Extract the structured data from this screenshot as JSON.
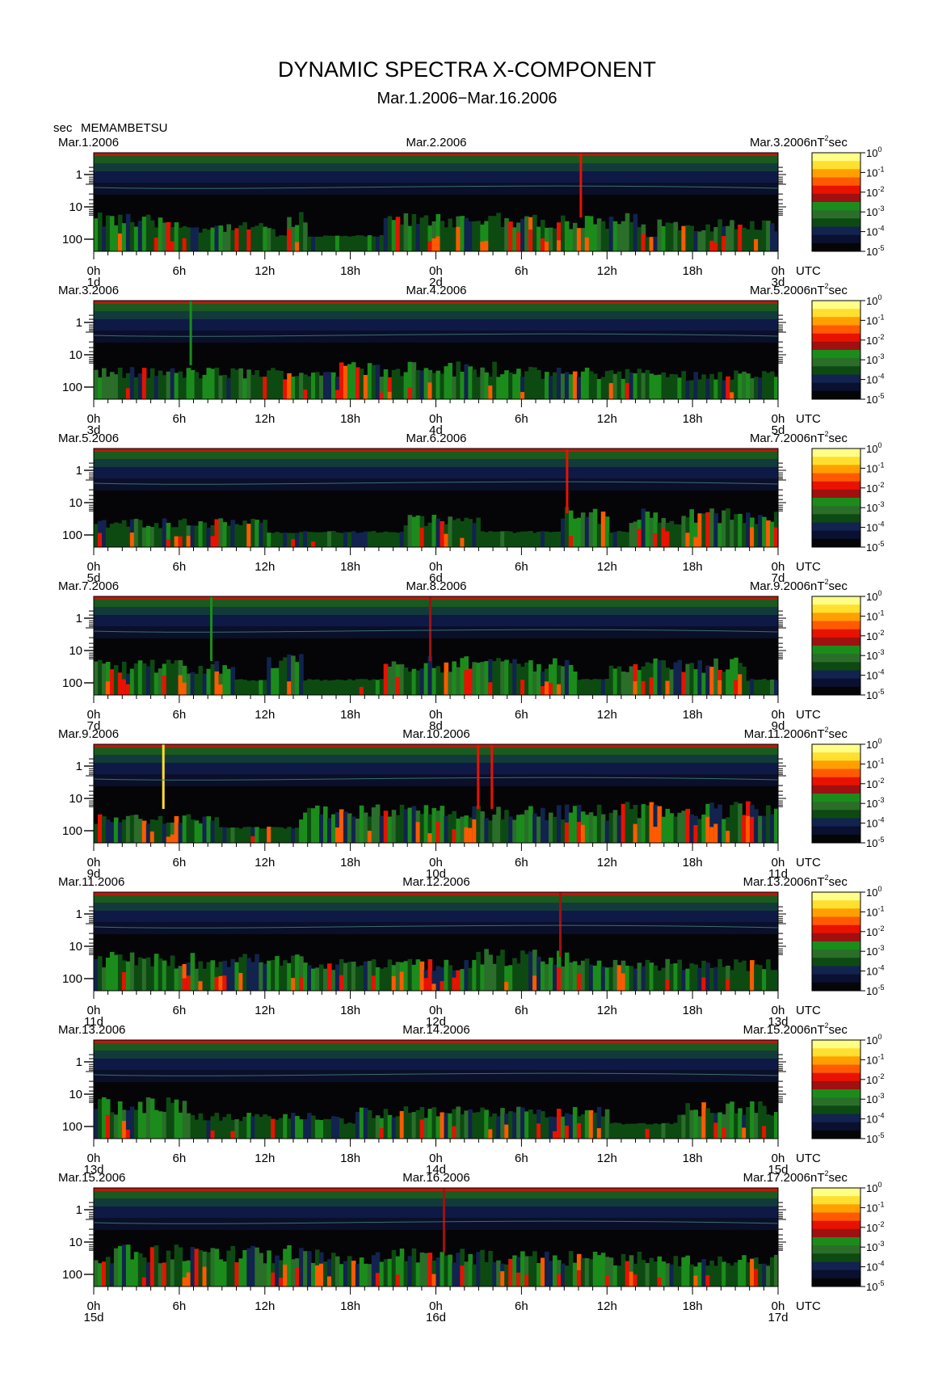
{
  "title": "DYNAMIC SPECTRA X-COMPONENT",
  "subtitle": "Mar.1.2006−Mar.16.2006",
  "y_unit": "sec",
  "station": "MEMAMBETSU",
  "time_zone": "UTC",
  "colorbar": {
    "unit_base": "nT",
    "unit_sup": "2",
    "unit_tail": "sec",
    "ticks": [
      {
        "base": "10",
        "exp": "0"
      },
      {
        "base": "10",
        "exp": "-1"
      },
      {
        "base": "10",
        "exp": "-2"
      },
      {
        "base": "10",
        "exp": "-3"
      },
      {
        "base": "10",
        "exp": "-4"
      },
      {
        "base": "10",
        "exp": "-5"
      }
    ],
    "colors": [
      "#ffff88",
      "#ffe030",
      "#ffa000",
      "#ff5a00",
      "#e81200",
      "#a01010",
      "#1b8c1b",
      "#2a6e2a",
      "#0d4a12",
      "#12234f",
      "#0a1030",
      "#050508"
    ]
  },
  "chart_data": {
    "type": "heatmap",
    "title": "DYNAMIC SPECTRA X-COMPONENT",
    "subtitle": "Mar.1.2006−Mar.16.2006",
    "y_axis": {
      "label": "sec",
      "scale": "log",
      "ticks": [
        "1",
        "10",
        "100"
      ],
      "inverted": true
    },
    "x_axis": {
      "ticks": [
        "0h",
        "6h",
        "12h",
        "18h",
        "0h",
        "6h",
        "12h",
        "18h",
        "0h"
      ],
      "label": "UTC"
    },
    "color_scale": {
      "unit": "nT²sec",
      "scale": "log",
      "range": [
        1e-05,
        1
      ]
    },
    "panels": [
      {
        "dates": [
          "Mar.1.2006",
          "Mar.2.2006",
          "Mar.3.2006"
        ],
        "days": [
          "1d",
          "2d",
          "3d"
        ]
      },
      {
        "dates": [
          "Mar.3.2006",
          "Mar.4.2006",
          "Mar.5.2006"
        ],
        "days": [
          "3d",
          "4d",
          "5d"
        ]
      },
      {
        "dates": [
          "Mar.5.2006",
          "Mar.6.2006",
          "Mar.7.2006"
        ],
        "days": [
          "5d",
          "6d",
          "7d"
        ]
      },
      {
        "dates": [
          "Mar.7.2006",
          "Mar.8.2006",
          "Mar.9.2006"
        ],
        "days": [
          "7d",
          "8d",
          "9d"
        ]
      },
      {
        "dates": [
          "Mar.9.2006",
          "Mar.10.2006",
          "Mar.11.2006"
        ],
        "days": [
          "9d",
          "10d",
          "11d"
        ]
      },
      {
        "dates": [
          "Mar.11.2006",
          "Mar.12.2006",
          "Mar.13.2006"
        ],
        "days": [
          "11d",
          "12d",
          "13d"
        ]
      },
      {
        "dates": [
          "Mar.13.2006",
          "Mar.14.2006",
          "Mar.15.2006"
        ],
        "days": [
          "13d",
          "14d",
          "15d"
        ]
      },
      {
        "dates": [
          "Mar.15.2006",
          "Mar.16.2006",
          "Mar.17.2006"
        ],
        "days": [
          "15d",
          "16d",
          "17d"
        ]
      }
    ]
  }
}
